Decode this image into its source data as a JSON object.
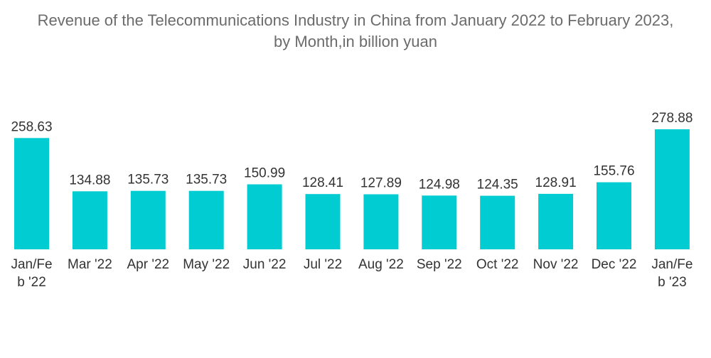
{
  "chart_data": {
    "type": "bar",
    "title_line1": "Revenue of the Telecommunications Industry in China from January 2022 to February 2023,",
    "title_line2": "by Month,in billion yuan",
    "categories": [
      [
        "Jan/Fe",
        "b '22"
      ],
      [
        "Mar '22"
      ],
      [
        "Apr '22"
      ],
      [
        "May '22"
      ],
      [
        "Jun '22"
      ],
      [
        "Jul '22"
      ],
      [
        "Aug '22"
      ],
      [
        "Sep '22"
      ],
      [
        "Oct '22"
      ],
      [
        "Nov '22"
      ],
      [
        "Dec '22"
      ],
      [
        "Jan/Fe",
        "b '23"
      ]
    ],
    "values": [
      258.63,
      134.88,
      135.73,
      135.73,
      150.99,
      128.41,
      127.89,
      124.98,
      124.35,
      128.91,
      155.76,
      278.88
    ],
    "value_labels": [
      "258.63",
      "134.88",
      "135.73",
      "135.73",
      "150.99",
      "128.41",
      "127.89",
      "124.98",
      "124.35",
      "128.91",
      "155.76",
      "278.88"
    ],
    "xlabel": "",
    "ylabel": "",
    "ylim": [
      0,
      278.88
    ],
    "bar_color": "#00CCD1",
    "grid": false
  }
}
